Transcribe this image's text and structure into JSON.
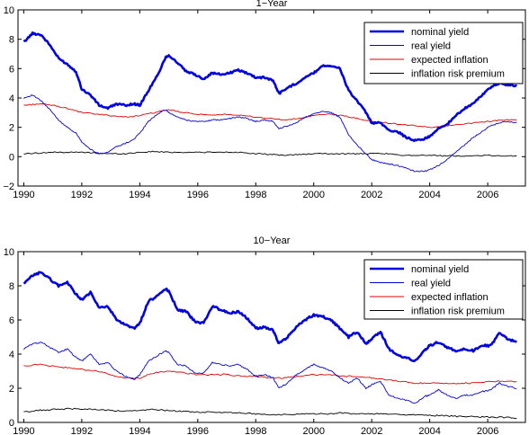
{
  "chart_data": [
    {
      "type": "line",
      "title": "1−Year",
      "xlabel": "",
      "ylabel": "",
      "xlim": [
        1989.8,
        2007.3
      ],
      "ylim": [
        -2,
        10
      ],
      "xticks": [
        "1990",
        "1992",
        "1994",
        "1996",
        "1998",
        "2000",
        "2002",
        "2004",
        "2006"
      ],
      "yticks": [
        "−2",
        "0",
        "2",
        "4",
        "6",
        "8",
        "10"
      ],
      "grid": false,
      "legend_position": "top-right",
      "series": [
        {
          "name": "nominal yield",
          "color": "#0000e0",
          "width": 2.6,
          "x": [
            1990.0,
            1990.3,
            1990.6,
            1990.9,
            1991.2,
            1991.5,
            1991.8,
            1992.0,
            1992.3,
            1992.6,
            1992.9,
            1993.2,
            1993.5,
            1993.8,
            1994.0,
            1994.3,
            1994.6,
            1994.9,
            1995.0,
            1995.3,
            1995.6,
            1995.9,
            1996.2,
            1996.5,
            1996.8,
            1997.1,
            1997.4,
            1997.7,
            1998.0,
            1998.3,
            1998.6,
            1998.8,
            1999.1,
            1999.4,
            1999.7,
            2000.0,
            2000.3,
            2000.6,
            2000.9,
            2001.2,
            2001.5,
            2001.8,
            2002.0,
            2002.3,
            2002.6,
            2002.9,
            2003.2,
            2003.5,
            2003.8,
            2004.0,
            2004.3,
            2004.6,
            2004.9,
            2005.2,
            2005.5,
            2005.8,
            2006.1,
            2006.4,
            2006.7,
            2007.0
          ],
          "y": [
            7.8,
            8.4,
            8.3,
            7.6,
            6.7,
            6.3,
            5.8,
            4.6,
            4.2,
            3.5,
            3.3,
            3.6,
            3.5,
            3.6,
            3.5,
            4.5,
            5.5,
            6.8,
            6.9,
            6.4,
            5.8,
            5.6,
            5.3,
            5.7,
            5.6,
            5.7,
            5.9,
            5.7,
            5.4,
            5.4,
            5.2,
            4.3,
            4.7,
            5.0,
            5.4,
            5.7,
            6.2,
            6.2,
            6.0,
            4.5,
            3.8,
            3.0,
            2.3,
            2.3,
            1.8,
            1.7,
            1.3,
            1.1,
            1.2,
            1.4,
            1.9,
            2.2,
            2.8,
            3.3,
            3.6,
            4.2,
            4.7,
            5.0,
            4.9,
            4.8
          ]
        },
        {
          "name": "real yield",
          "color": "#0000e0",
          "width": 0.9,
          "x": [
            1990.0,
            1990.3,
            1990.6,
            1990.9,
            1991.2,
            1991.5,
            1991.8,
            1992.0,
            1992.3,
            1992.6,
            1992.9,
            1993.2,
            1993.5,
            1993.8,
            1994.0,
            1994.3,
            1994.6,
            1994.9,
            1995.0,
            1995.3,
            1995.6,
            1995.9,
            1996.2,
            1996.5,
            1996.8,
            1997.1,
            1997.4,
            1997.7,
            1998.0,
            1998.3,
            1998.6,
            1998.8,
            1999.1,
            1999.4,
            1999.7,
            2000.0,
            2000.3,
            2000.6,
            2000.9,
            2001.2,
            2001.5,
            2001.8,
            2002.0,
            2002.3,
            2002.6,
            2002.9,
            2003.2,
            2003.5,
            2003.8,
            2004.0,
            2004.3,
            2004.6,
            2004.9,
            2005.2,
            2005.5,
            2005.8,
            2006.1,
            2006.4,
            2006.7,
            2007.0
          ],
          "y": [
            4.0,
            4.2,
            3.8,
            3.2,
            2.5,
            2.0,
            1.6,
            1.0,
            0.5,
            0.2,
            0.3,
            0.7,
            0.9,
            1.2,
            1.6,
            2.4,
            2.9,
            3.2,
            3.0,
            2.7,
            2.5,
            2.4,
            2.4,
            2.5,
            2.5,
            2.6,
            2.7,
            2.6,
            2.4,
            2.5,
            2.4,
            1.9,
            2.1,
            2.3,
            2.7,
            2.9,
            3.1,
            3.0,
            2.7,
            1.5,
            0.8,
            0.2,
            -0.2,
            -0.4,
            -0.5,
            -0.6,
            -0.8,
            -1.0,
            -1.0,
            -0.9,
            -0.6,
            -0.2,
            0.3,
            0.8,
            1.3,
            1.7,
            2.1,
            2.3,
            2.4,
            2.3
          ]
        },
        {
          "name": "expected inflation",
          "color": "#e00000",
          "width": 0.9,
          "x": [
            1990.0,
            1990.5,
            1991.0,
            1991.5,
            1992.0,
            1992.5,
            1993.0,
            1993.5,
            1994.0,
            1994.5,
            1995.0,
            1995.5,
            1996.0,
            1996.5,
            1997.0,
            1997.5,
            1998.0,
            1998.5,
            1999.0,
            1999.5,
            2000.0,
            2000.5,
            2001.0,
            2001.5,
            2002.0,
            2002.5,
            2003.0,
            2003.5,
            2004.0,
            2004.5,
            2005.0,
            2005.5,
            2006.0,
            2006.5,
            2007.0
          ],
          "y": [
            3.5,
            3.6,
            3.5,
            3.3,
            3.0,
            2.9,
            2.8,
            2.7,
            2.8,
            3.0,
            3.2,
            3.0,
            2.9,
            2.8,
            2.9,
            2.8,
            2.7,
            2.6,
            2.5,
            2.6,
            2.8,
            2.9,
            2.8,
            2.6,
            2.4,
            2.3,
            2.2,
            2.1,
            2.0,
            2.1,
            2.2,
            2.3,
            2.4,
            2.5,
            2.5
          ]
        },
        {
          "name": "inflation risk premium",
          "color": "#000000",
          "width": 0.9,
          "x": [
            1990.0,
            1990.5,
            1991.0,
            1991.5,
            1992.0,
            1992.5,
            1993.0,
            1993.5,
            1994.0,
            1994.5,
            1995.0,
            1995.5,
            1996.0,
            1996.5,
            1997.0,
            1997.5,
            1998.0,
            1998.5,
            1999.0,
            1999.5,
            2000.0,
            2000.5,
            2001.0,
            2001.5,
            2002.0,
            2002.5,
            2003.0,
            2003.5,
            2004.0,
            2004.5,
            2005.0,
            2005.5,
            2006.0,
            2006.5,
            2007.0
          ],
          "y": [
            0.2,
            0.25,
            0.3,
            0.3,
            0.3,
            0.25,
            0.2,
            0.2,
            0.3,
            0.35,
            0.3,
            0.3,
            0.3,
            0.3,
            0.3,
            0.3,
            0.2,
            0.15,
            0.1,
            0.15,
            0.2,
            0.2,
            0.2,
            0.2,
            0.2,
            0.2,
            0.1,
            0.1,
            0.1,
            0.05,
            0.05,
            0.05,
            0.1,
            0.05,
            0.05
          ]
        }
      ]
    },
    {
      "type": "line",
      "title": "10−Year",
      "xlabel": "",
      "ylabel": "",
      "xlim": [
        1989.8,
        2007.3
      ],
      "ylim": [
        0,
        10
      ],
      "xticks": [
        "1990",
        "1992",
        "1994",
        "1996",
        "1998",
        "2000",
        "2002",
        "2004",
        "2006"
      ],
      "yticks": [
        "0",
        "2",
        "4",
        "6",
        "8",
        "10"
      ],
      "grid": false,
      "legend_position": "top-right",
      "series": [
        {
          "name": "nominal yield",
          "color": "#0000e0",
          "width": 2.6,
          "x": [
            1990.0,
            1990.3,
            1990.6,
            1990.9,
            1991.2,
            1991.5,
            1991.8,
            1992.0,
            1992.3,
            1992.6,
            1992.9,
            1993.2,
            1993.5,
            1993.8,
            1994.0,
            1994.3,
            1994.6,
            1994.9,
            1995.0,
            1995.3,
            1995.6,
            1995.9,
            1996.2,
            1996.5,
            1996.8,
            1997.1,
            1997.4,
            1997.7,
            1998.0,
            1998.3,
            1998.6,
            1998.8,
            1999.1,
            1999.4,
            1999.7,
            2000.0,
            2000.3,
            2000.6,
            2000.9,
            2001.2,
            2001.5,
            2001.8,
            2002.0,
            2002.3,
            2002.6,
            2002.9,
            2003.2,
            2003.5,
            2003.8,
            2004.0,
            2004.3,
            2004.6,
            2004.9,
            2005.2,
            2005.5,
            2005.8,
            2006.1,
            2006.4,
            2006.7,
            2007.0
          ],
          "y": [
            8.1,
            8.6,
            8.8,
            8.4,
            8.0,
            8.2,
            7.5,
            7.2,
            7.6,
            6.7,
            6.8,
            6.0,
            5.7,
            5.5,
            5.8,
            7.1,
            7.4,
            7.8,
            7.7,
            6.6,
            6.5,
            5.9,
            5.8,
            6.8,
            6.6,
            6.4,
            6.5,
            6.1,
            5.5,
            5.6,
            5.4,
            4.6,
            5.0,
            5.6,
            6.0,
            6.3,
            6.2,
            6.0,
            5.5,
            5.0,
            5.3,
            4.6,
            4.9,
            5.3,
            4.3,
            3.9,
            3.8,
            3.6,
            4.2,
            4.5,
            4.7,
            4.4,
            4.2,
            4.3,
            4.2,
            4.5,
            4.5,
            5.2,
            4.9,
            4.7
          ]
        },
        {
          "name": "real yield",
          "color": "#0000e0",
          "width": 0.9,
          "x": [
            1990.0,
            1990.3,
            1990.6,
            1990.9,
            1991.2,
            1991.5,
            1991.8,
            1992.0,
            1992.3,
            1992.6,
            1992.9,
            1993.2,
            1993.5,
            1993.8,
            1994.0,
            1994.3,
            1994.6,
            1994.9,
            1995.0,
            1995.3,
            1995.6,
            1995.9,
            1996.2,
            1996.5,
            1996.8,
            1997.1,
            1997.4,
            1997.7,
            1998.0,
            1998.3,
            1998.6,
            1998.8,
            1999.1,
            1999.4,
            1999.7,
            2000.0,
            2000.3,
            2000.6,
            2000.9,
            2001.2,
            2001.5,
            2001.8,
            2002.0,
            2002.3,
            2002.6,
            2002.9,
            2003.2,
            2003.5,
            2003.8,
            2004.0,
            2004.3,
            2004.6,
            2004.9,
            2005.2,
            2005.5,
            2005.8,
            2006.1,
            2006.4,
            2006.7,
            2007.0
          ],
          "y": [
            4.3,
            4.6,
            4.7,
            4.4,
            4.1,
            4.3,
            3.8,
            3.6,
            4.0,
            3.4,
            3.5,
            3.0,
            2.7,
            2.5,
            2.8,
            3.6,
            3.9,
            4.2,
            4.1,
            3.4,
            3.3,
            2.9,
            2.9,
            3.5,
            3.4,
            3.3,
            3.4,
            3.1,
            2.7,
            2.8,
            2.6,
            2.0,
            2.3,
            2.8,
            3.1,
            3.4,
            3.2,
            3.0,
            2.6,
            2.3,
            2.6,
            2.0,
            2.2,
            2.4,
            1.6,
            1.4,
            1.3,
            1.1,
            1.5,
            1.6,
            1.9,
            1.6,
            1.4,
            1.6,
            1.6,
            1.8,
            1.9,
            2.3,
            2.1,
            2.0
          ]
        },
        {
          "name": "expected inflation",
          "color": "#e00000",
          "width": 0.9,
          "x": [
            1990.0,
            1990.5,
            1991.0,
            1991.5,
            1992.0,
            1992.5,
            1993.0,
            1993.5,
            1994.0,
            1994.5,
            1995.0,
            1995.5,
            1996.0,
            1996.5,
            1997.0,
            1997.5,
            1998.0,
            1998.5,
            1999.0,
            1999.5,
            2000.0,
            2000.5,
            2001.0,
            2001.5,
            2002.0,
            2002.5,
            2003.0,
            2003.5,
            2004.0,
            2004.5,
            2005.0,
            2005.5,
            2006.0,
            2006.5,
            2007.0
          ],
          "y": [
            3.3,
            3.4,
            3.3,
            3.2,
            3.1,
            3.0,
            2.8,
            2.6,
            2.6,
            2.9,
            3.0,
            2.9,
            2.8,
            2.8,
            2.8,
            2.7,
            2.7,
            2.6,
            2.6,
            2.7,
            2.8,
            2.8,
            2.7,
            2.7,
            2.6,
            2.5,
            2.4,
            2.3,
            2.3,
            2.3,
            2.3,
            2.3,
            2.4,
            2.4,
            2.4
          ]
        },
        {
          "name": "inflation risk premium",
          "color": "#000000",
          "width": 0.9,
          "x": [
            1990.0,
            1990.5,
            1991.0,
            1991.5,
            1992.0,
            1992.5,
            1993.0,
            1993.5,
            1994.0,
            1994.5,
            1995.0,
            1995.5,
            1996.0,
            1996.5,
            1997.0,
            1997.5,
            1998.0,
            1998.5,
            1999.0,
            1999.5,
            2000.0,
            2000.5,
            2001.0,
            2001.5,
            2002.0,
            2002.5,
            2003.0,
            2003.5,
            2004.0,
            2004.5,
            2005.0,
            2005.5,
            2006.0,
            2006.5,
            2007.0
          ],
          "y": [
            0.6,
            0.7,
            0.75,
            0.8,
            0.8,
            0.75,
            0.7,
            0.65,
            0.7,
            0.75,
            0.7,
            0.65,
            0.6,
            0.6,
            0.6,
            0.55,
            0.5,
            0.45,
            0.45,
            0.5,
            0.5,
            0.5,
            0.55,
            0.5,
            0.5,
            0.5,
            0.45,
            0.45,
            0.4,
            0.4,
            0.35,
            0.35,
            0.3,
            0.3,
            0.25
          ]
        }
      ]
    }
  ]
}
